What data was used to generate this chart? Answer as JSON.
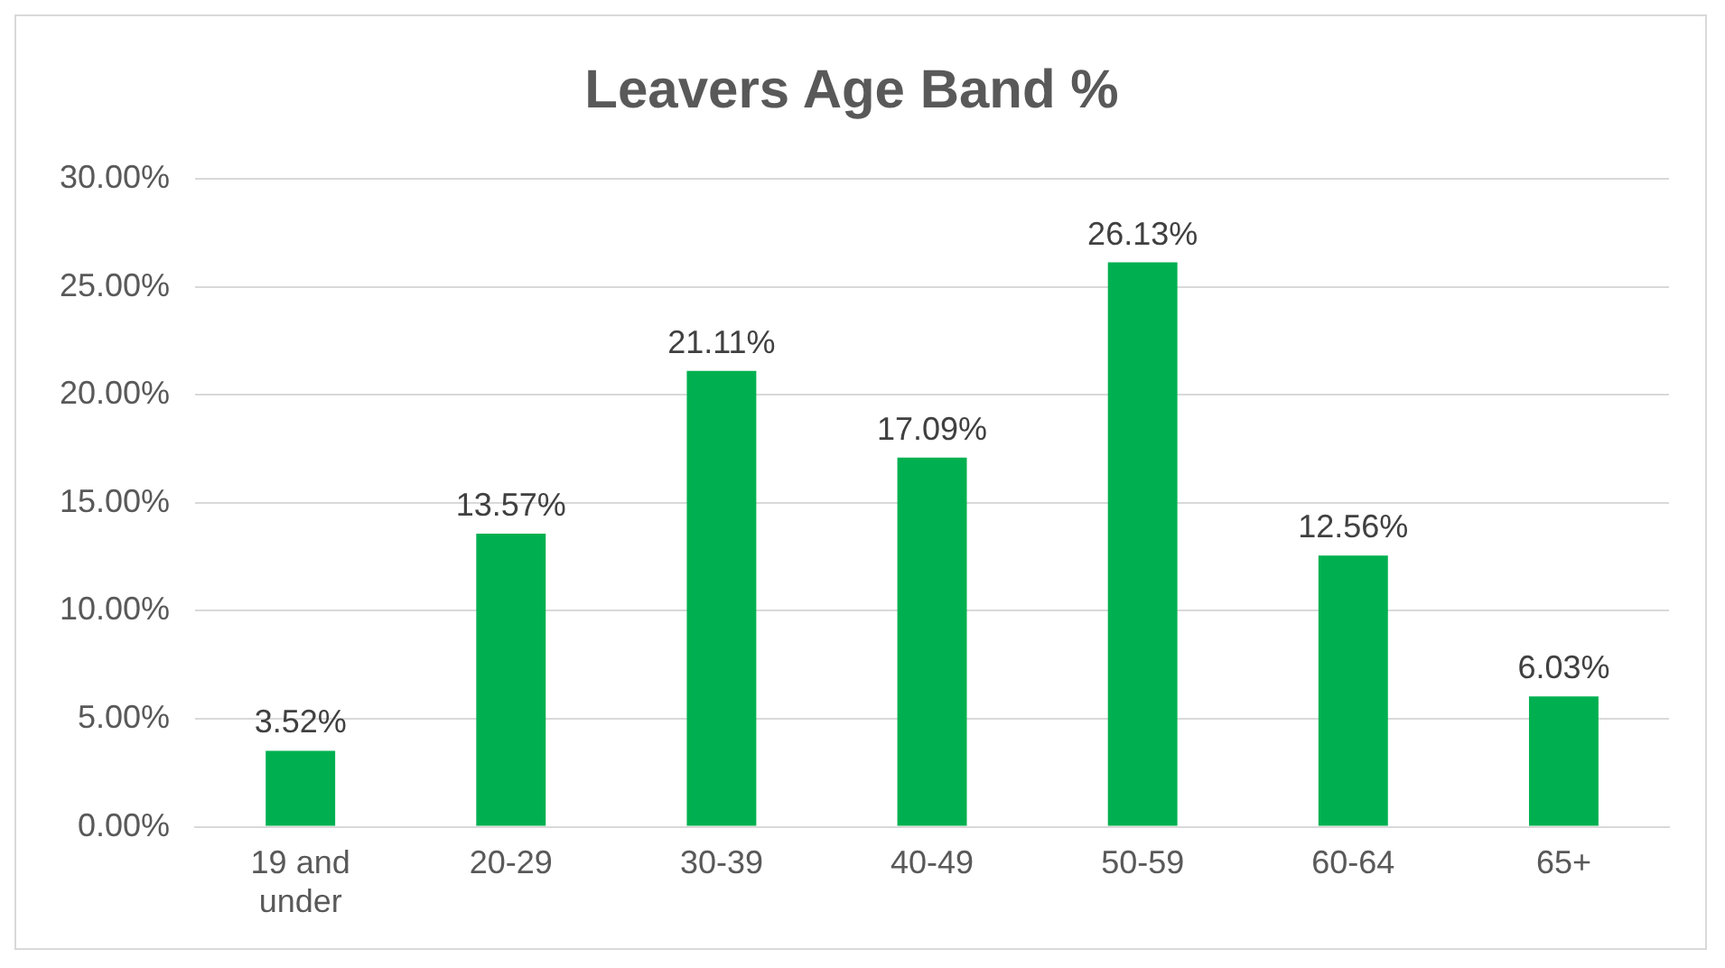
{
  "chart_data": {
    "type": "bar",
    "title": "Leavers Age Band %",
    "categories": [
      "19 and under",
      "20-29",
      "30-39",
      "40-49",
      "50-59",
      "60-64",
      "65+"
    ],
    "values": [
      3.52,
      13.57,
      21.11,
      17.09,
      26.13,
      12.56,
      6.03
    ],
    "value_labels": [
      "3.52%",
      "13.57%",
      "21.11%",
      "17.09%",
      "26.13%",
      "12.56%",
      "6.03%"
    ],
    "color": "#00b050",
    "ylim": [
      0,
      30
    ],
    "yticks": [
      {
        "value": 0,
        "label": "0.00%"
      },
      {
        "value": 5,
        "label": "5.00%"
      },
      {
        "value": 10,
        "label": "10.00%"
      },
      {
        "value": 15,
        "label": "15.00%"
      },
      {
        "value": 20,
        "label": "20.00%"
      },
      {
        "value": 25,
        "label": "25.00%"
      },
      {
        "value": 30,
        "label": "30.00%"
      }
    ],
    "grid": "y",
    "legend": false
  }
}
